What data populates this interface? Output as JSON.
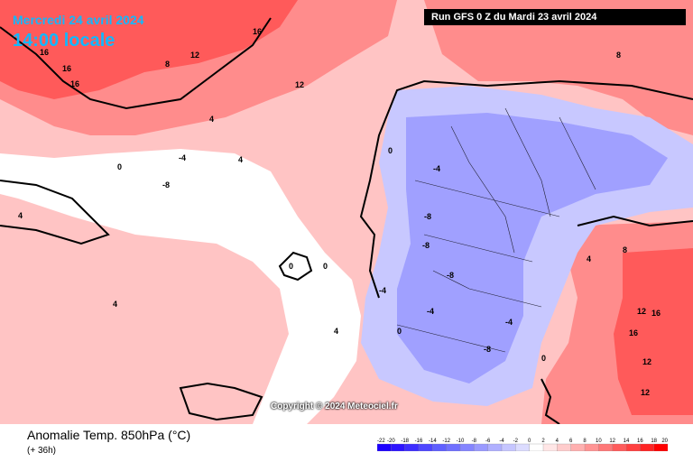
{
  "header": {
    "valid_date": "Mercredi 24 avril 2024",
    "valid_time": "14:00 locale",
    "run": "Run GFS 0 Z du Mardi 23 avril 2024"
  },
  "copyright": "Copyright © 2024 Meteociel.fr",
  "footer": {
    "title": "Anomalie Temp. 850hPa (°C)",
    "lead_time": "(+ 36h)"
  },
  "legend": {
    "ticks": [
      "-22",
      "-20",
      "-18",
      "-16",
      "-14",
      "-12",
      "-10",
      "-8",
      "-6",
      "-4",
      "-2",
      "0",
      "2",
      "4",
      "6",
      "8",
      "10",
      "12",
      "14",
      "16",
      "18",
      "20"
    ],
    "colors": [
      "#1c00ff",
      "#2d14ff",
      "#3d2dff",
      "#4e46ff",
      "#5f5fff",
      "#7070ff",
      "#8585ff",
      "#9a9aff",
      "#b0b0ff",
      "#c6c6ff",
      "#dcdcff",
      "#ffffff",
      "#ffe6e6",
      "#ffcccc",
      "#ffb0b0",
      "#ff9494",
      "#ff7878",
      "#ff5c5c",
      "#ff4040",
      "#ff2424",
      "#ff0000"
    ]
  },
  "map": {
    "colors": {
      "warm_strong": "#ff5a5a",
      "warm": "#ff8c8c",
      "warm_light": "#ffc8c8",
      "neutral": "#ffffff",
      "cool_light": "#c8c8ff",
      "cool": "#a0a0ff",
      "cool_strong": "#8080f0"
    },
    "contour_labels": [
      "16",
      "16",
      "16",
      "12",
      "12",
      "16",
      "8",
      "4",
      "0",
      "-4",
      "-8",
      "4",
      "0",
      "-4",
      "-8",
      "-4",
      "-8",
      "-4",
      "4",
      "8",
      "12",
      "16",
      "16",
      "12",
      "12",
      "8",
      "4",
      "0",
      "-4",
      "-8",
      "-8",
      "0",
      "4",
      "4",
      "0",
      "0"
    ]
  }
}
